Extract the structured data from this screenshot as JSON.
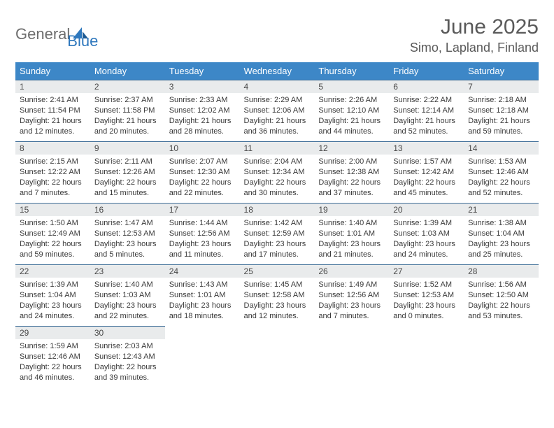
{
  "logo": {
    "word1": "General",
    "word2": "Blue"
  },
  "title": "June 2025",
  "location": "Simo, Lapland, Finland",
  "colors": {
    "header_bg": "#3d87c7",
    "header_text": "#ffffff",
    "daynum_bg": "#e9ebec",
    "daynum_border": "#3d6d97",
    "body_text": "#3a3a3a",
    "title_text": "#5a5a5a",
    "logo_gray": "#6e6e6e",
    "logo_blue": "#2f78bd"
  },
  "weekdays": [
    "Sunday",
    "Monday",
    "Tuesday",
    "Wednesday",
    "Thursday",
    "Friday",
    "Saturday"
  ],
  "weeks": [
    [
      {
        "day": "1",
        "sunrise": "2:41 AM",
        "sunset": "11:54 PM",
        "daylight": "21 hours and 12 minutes."
      },
      {
        "day": "2",
        "sunrise": "2:37 AM",
        "sunset": "11:58 PM",
        "daylight": "21 hours and 20 minutes."
      },
      {
        "day": "3",
        "sunrise": "2:33 AM",
        "sunset": "12:02 AM",
        "daylight": "21 hours and 28 minutes."
      },
      {
        "day": "4",
        "sunrise": "2:29 AM",
        "sunset": "12:06 AM",
        "daylight": "21 hours and 36 minutes."
      },
      {
        "day": "5",
        "sunrise": "2:26 AM",
        "sunset": "12:10 AM",
        "daylight": "21 hours and 44 minutes."
      },
      {
        "day": "6",
        "sunrise": "2:22 AM",
        "sunset": "12:14 AM",
        "daylight": "21 hours and 52 minutes."
      },
      {
        "day": "7",
        "sunrise": "2:18 AM",
        "sunset": "12:18 AM",
        "daylight": "21 hours and 59 minutes."
      }
    ],
    [
      {
        "day": "8",
        "sunrise": "2:15 AM",
        "sunset": "12:22 AM",
        "daylight": "22 hours and 7 minutes."
      },
      {
        "day": "9",
        "sunrise": "2:11 AM",
        "sunset": "12:26 AM",
        "daylight": "22 hours and 15 minutes."
      },
      {
        "day": "10",
        "sunrise": "2:07 AM",
        "sunset": "12:30 AM",
        "daylight": "22 hours and 22 minutes."
      },
      {
        "day": "11",
        "sunrise": "2:04 AM",
        "sunset": "12:34 AM",
        "daylight": "22 hours and 30 minutes."
      },
      {
        "day": "12",
        "sunrise": "2:00 AM",
        "sunset": "12:38 AM",
        "daylight": "22 hours and 37 minutes."
      },
      {
        "day": "13",
        "sunrise": "1:57 AM",
        "sunset": "12:42 AM",
        "daylight": "22 hours and 45 minutes."
      },
      {
        "day": "14",
        "sunrise": "1:53 AM",
        "sunset": "12:46 AM",
        "daylight": "22 hours and 52 minutes."
      }
    ],
    [
      {
        "day": "15",
        "sunrise": "1:50 AM",
        "sunset": "12:49 AM",
        "daylight": "22 hours and 59 minutes."
      },
      {
        "day": "16",
        "sunrise": "1:47 AM",
        "sunset": "12:53 AM",
        "daylight": "23 hours and 5 minutes."
      },
      {
        "day": "17",
        "sunrise": "1:44 AM",
        "sunset": "12:56 AM",
        "daylight": "23 hours and 11 minutes."
      },
      {
        "day": "18",
        "sunrise": "1:42 AM",
        "sunset": "12:59 AM",
        "daylight": "23 hours and 17 minutes."
      },
      {
        "day": "19",
        "sunrise": "1:40 AM",
        "sunset": "1:01 AM",
        "daylight": "23 hours and 21 minutes."
      },
      {
        "day": "20",
        "sunrise": "1:39 AM",
        "sunset": "1:03 AM",
        "daylight": "23 hours and 24 minutes."
      },
      {
        "day": "21",
        "sunrise": "1:38 AM",
        "sunset": "1:04 AM",
        "daylight": "23 hours and 25 minutes."
      }
    ],
    [
      {
        "day": "22",
        "sunrise": "1:39 AM",
        "sunset": "1:04 AM",
        "daylight": "23 hours and 24 minutes."
      },
      {
        "day": "23",
        "sunrise": "1:40 AM",
        "sunset": "1:03 AM",
        "daylight": "23 hours and 22 minutes."
      },
      {
        "day": "24",
        "sunrise": "1:43 AM",
        "sunset": "1:01 AM",
        "daylight": "23 hours and 18 minutes."
      },
      {
        "day": "25",
        "sunrise": "1:45 AM",
        "sunset": "12:58 AM",
        "daylight": "23 hours and 12 minutes."
      },
      {
        "day": "26",
        "sunrise": "1:49 AM",
        "sunset": "12:56 AM",
        "daylight": "23 hours and 7 minutes."
      },
      {
        "day": "27",
        "sunrise": "1:52 AM",
        "sunset": "12:53 AM",
        "daylight": "23 hours and 0 minutes."
      },
      {
        "day": "28",
        "sunrise": "1:56 AM",
        "sunset": "12:50 AM",
        "daylight": "22 hours and 53 minutes."
      }
    ],
    [
      {
        "day": "29",
        "sunrise": "1:59 AM",
        "sunset": "12:46 AM",
        "daylight": "22 hours and 46 minutes."
      },
      {
        "day": "30",
        "sunrise": "2:03 AM",
        "sunset": "12:43 AM",
        "daylight": "22 hours and 39 minutes."
      },
      null,
      null,
      null,
      null,
      null
    ]
  ],
  "labels": {
    "sunrise": "Sunrise: ",
    "sunset": "Sunset: ",
    "daylight": "Daylight: "
  }
}
